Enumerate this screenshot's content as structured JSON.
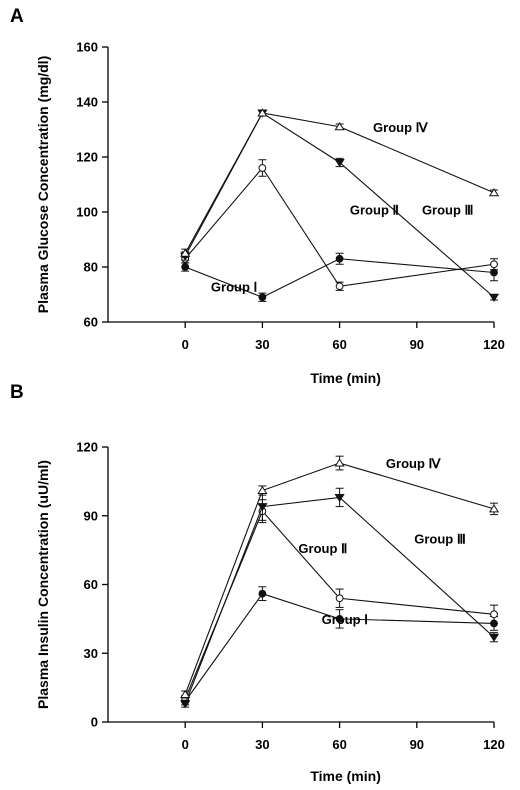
{
  "chart_data": [
    {
      "panel": "A",
      "type": "line",
      "title": "",
      "xlabel": "Time (min)",
      "ylabel": "Plasma Glucose Concentration (mg/dl)",
      "x": [
        0,
        30,
        60,
        120
      ],
      "xticks": [
        "0",
        "30",
        "60",
        "90",
        "120"
      ],
      "xtick_values": [
        0,
        30,
        60,
        90,
        120
      ],
      "xlim": [
        -30,
        120
      ],
      "ylim": [
        60,
        160
      ],
      "yticks": [
        "60",
        "80",
        "100",
        "120",
        "140",
        "160"
      ],
      "ytick_values": [
        60,
        80,
        100,
        120,
        140,
        160
      ],
      "grid": false,
      "series": [
        {
          "name": "Group Ⅰ",
          "marker": "filled-circle",
          "values": [
            80,
            69,
            83,
            78
          ],
          "errors": [
            1.5,
            1.5,
            2,
            3
          ]
        },
        {
          "name": "Group Ⅱ",
          "marker": "open-circle",
          "values": [
            83,
            116,
            73,
            81
          ],
          "errors": [
            1.5,
            3,
            1.5,
            2
          ]
        },
        {
          "name": "Group Ⅲ",
          "marker": "filled-triangle-down",
          "values": [
            84,
            136,
            118,
            69
          ],
          "errors": [
            1.5,
            1,
            1.5,
            1
          ]
        },
        {
          "name": "Group Ⅳ",
          "marker": "open-triangle-up",
          "values": [
            85,
            136,
            131,
            107
          ],
          "errors": [
            1.5,
            1,
            1,
            1
          ]
        }
      ],
      "labels": [
        {
          "text": "Group Ⅰ",
          "x": 10,
          "y": 73
        },
        {
          "text": "Group Ⅱ",
          "x": 64,
          "y": 101
        },
        {
          "text": "Group Ⅲ",
          "x": 92,
          "y": 101
        },
        {
          "text": "Group Ⅳ",
          "x": 73,
          "y": 131
        }
      ]
    },
    {
      "panel": "B",
      "type": "line",
      "title": "",
      "xlabel": "Time (min)",
      "ylabel": "Plasma Insulin Concentration (uU/ml)",
      "x": [
        0,
        30,
        60,
        120
      ],
      "xticks": [
        "0",
        "30",
        "60",
        "90",
        "120"
      ],
      "xtick_values": [
        0,
        30,
        60,
        90,
        120
      ],
      "xlim": [
        -30,
        120
      ],
      "ylim": [
        0,
        120
      ],
      "yticks": [
        "0",
        "30",
        "60",
        "90",
        "120"
      ],
      "ytick_values": [
        0,
        30,
        60,
        90,
        120
      ],
      "grid": false,
      "series": [
        {
          "name": "Group Ⅰ",
          "marker": "filled-circle",
          "values": [
            9,
            56,
            45,
            43
          ],
          "errors": [
            1.5,
            3,
            4,
            3
          ]
        },
        {
          "name": "Group Ⅱ",
          "marker": "open-circle",
          "values": [
            10,
            92,
            54,
            47
          ],
          "errors": [
            1.5,
            5,
            4,
            4
          ]
        },
        {
          "name": "Group Ⅲ",
          "marker": "filled-triangle-down",
          "values": [
            8,
            94,
            98,
            37
          ],
          "errors": [
            1.5,
            6,
            4,
            2
          ]
        },
        {
          "name": "Group Ⅳ",
          "marker": "open-triangle-up",
          "values": [
            12,
            101,
            113,
            93
          ],
          "errors": [
            1.5,
            2,
            3,
            2.5
          ]
        }
      ],
      "labels": [
        {
          "text": "Group Ⅰ",
          "x": 53,
          "y": 45
        },
        {
          "text": "Group Ⅱ",
          "x": 44,
          "y": 76
        },
        {
          "text": "Group Ⅲ",
          "x": 89,
          "y": 80
        },
        {
          "text": "Group Ⅳ",
          "x": 78,
          "y": 113
        }
      ]
    }
  ]
}
